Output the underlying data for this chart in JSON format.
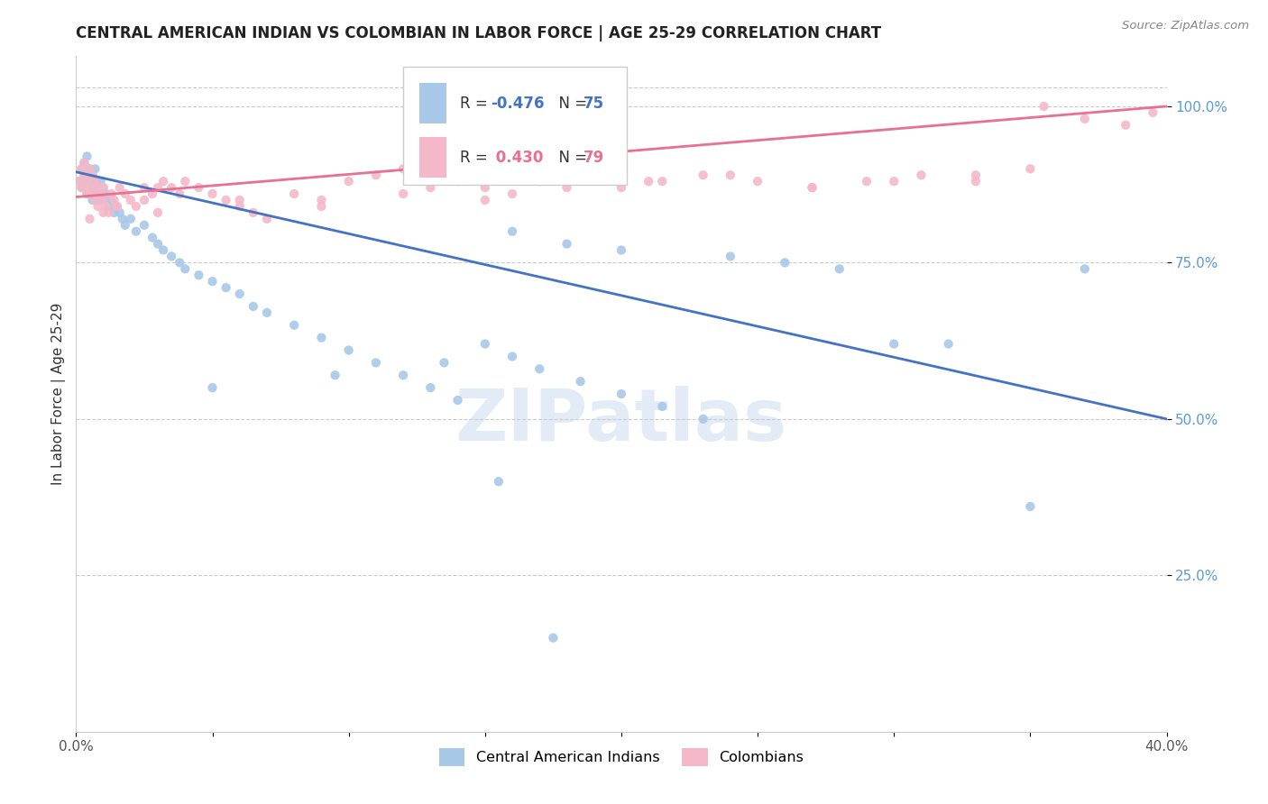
{
  "title": "CENTRAL AMERICAN INDIAN VS COLOMBIAN IN LABOR FORCE | AGE 25-29 CORRELATION CHART",
  "source": "Source: ZipAtlas.com",
  "ylabel": "In Labor Force | Age 25-29",
  "xlim": [
    0.0,
    0.4
  ],
  "ylim": [
    0.0,
    1.08
  ],
  "ytick_vals": [
    0.25,
    0.5,
    0.75,
    1.0
  ],
  "ytick_labels": [
    "25.0%",
    "50.0%",
    "75.0%",
    "100.0%"
  ],
  "legend_r_blue": "-0.476",
  "legend_n_blue": "75",
  "legend_r_pink": "0.430",
  "legend_n_pink": "79",
  "legend_label_blue": "Central American Indians",
  "legend_label_pink": "Colombians",
  "blue_color": "#A8C8E8",
  "pink_color": "#F4B8C8",
  "line_blue": "#4472C4",
  "line_pink": "#E87090",
  "marker_size": 55,
  "blue_x": [
    0.001,
    0.002,
    0.002,
    0.003,
    0.003,
    0.004,
    0.004,
    0.004,
    0.005,
    0.005,
    0.005,
    0.006,
    0.006,
    0.006,
    0.007,
    0.007,
    0.007,
    0.008,
    0.008,
    0.009,
    0.009,
    0.01,
    0.01,
    0.011,
    0.012,
    0.013,
    0.014,
    0.015,
    0.016,
    0.017,
    0.018,
    0.02,
    0.022,
    0.025,
    0.028,
    0.03,
    0.032,
    0.035,
    0.038,
    0.04,
    0.045,
    0.05,
    0.055,
    0.06,
    0.065,
    0.07,
    0.08,
    0.09,
    0.1,
    0.11,
    0.12,
    0.13,
    0.14,
    0.15,
    0.16,
    0.17,
    0.185,
    0.2,
    0.215,
    0.23,
    0.16,
    0.18,
    0.2,
    0.24,
    0.26,
    0.28,
    0.3,
    0.32,
    0.35,
    0.37,
    0.05,
    0.095,
    0.135,
    0.155,
    0.175
  ],
  "blue_y": [
    0.88,
    0.9,
    0.87,
    0.91,
    0.89,
    0.92,
    0.88,
    0.86,
    0.9,
    0.88,
    0.86,
    0.89,
    0.87,
    0.85,
    0.9,
    0.88,
    0.86,
    0.87,
    0.85,
    0.88,
    0.86,
    0.87,
    0.85,
    0.86,
    0.84,
    0.85,
    0.83,
    0.84,
    0.83,
    0.82,
    0.81,
    0.82,
    0.8,
    0.81,
    0.79,
    0.78,
    0.77,
    0.76,
    0.75,
    0.74,
    0.73,
    0.72,
    0.71,
    0.7,
    0.68,
    0.67,
    0.65,
    0.63,
    0.61,
    0.59,
    0.57,
    0.55,
    0.53,
    0.62,
    0.6,
    0.58,
    0.56,
    0.54,
    0.52,
    0.5,
    0.8,
    0.78,
    0.77,
    0.76,
    0.75,
    0.74,
    0.62,
    0.62,
    0.36,
    0.74,
    0.55,
    0.57,
    0.59,
    0.4,
    0.15
  ],
  "pink_x": [
    0.001,
    0.002,
    0.002,
    0.003,
    0.003,
    0.004,
    0.004,
    0.005,
    0.005,
    0.006,
    0.006,
    0.007,
    0.007,
    0.008,
    0.008,
    0.009,
    0.01,
    0.01,
    0.011,
    0.012,
    0.013,
    0.014,
    0.015,
    0.016,
    0.018,
    0.02,
    0.022,
    0.025,
    0.028,
    0.03,
    0.032,
    0.035,
    0.038,
    0.04,
    0.045,
    0.05,
    0.055,
    0.06,
    0.065,
    0.07,
    0.08,
    0.09,
    0.1,
    0.11,
    0.12,
    0.13,
    0.14,
    0.15,
    0.16,
    0.17,
    0.185,
    0.2,
    0.215,
    0.23,
    0.25,
    0.27,
    0.29,
    0.31,
    0.33,
    0.35,
    0.03,
    0.06,
    0.09,
    0.12,
    0.15,
    0.18,
    0.21,
    0.24,
    0.27,
    0.3,
    0.33,
    0.355,
    0.37,
    0.385,
    0.395,
    0.005,
    0.01,
    0.015,
    0.025
  ],
  "pink_y": [
    0.88,
    0.9,
    0.87,
    0.91,
    0.89,
    0.88,
    0.86,
    0.9,
    0.87,
    0.89,
    0.86,
    0.88,
    0.85,
    0.87,
    0.84,
    0.86,
    0.85,
    0.87,
    0.84,
    0.83,
    0.86,
    0.85,
    0.84,
    0.87,
    0.86,
    0.85,
    0.84,
    0.87,
    0.86,
    0.87,
    0.88,
    0.87,
    0.86,
    0.88,
    0.87,
    0.86,
    0.85,
    0.84,
    0.83,
    0.82,
    0.86,
    0.85,
    0.88,
    0.89,
    0.9,
    0.87,
    0.88,
    0.87,
    0.86,
    0.88,
    0.89,
    0.87,
    0.88,
    0.89,
    0.88,
    0.87,
    0.88,
    0.89,
    0.88,
    0.9,
    0.83,
    0.85,
    0.84,
    0.86,
    0.85,
    0.87,
    0.88,
    0.89,
    0.87,
    0.88,
    0.89,
    1.0,
    0.98,
    0.97,
    0.99,
    0.82,
    0.83,
    0.84,
    0.85
  ]
}
